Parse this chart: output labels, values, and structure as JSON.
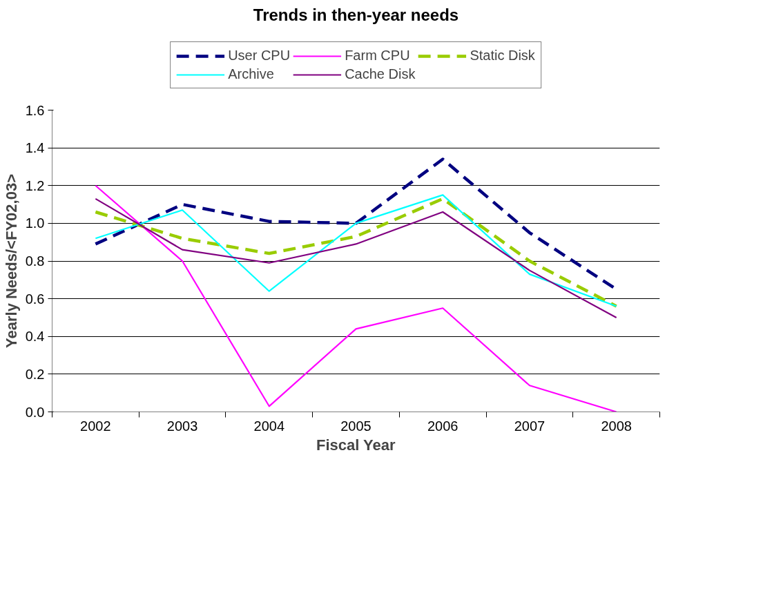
{
  "chart_data": {
    "type": "line",
    "title": "Trends in then-year needs",
    "xlabel": "Fiscal Year",
    "ylabel": "Yearly Needs/<FY02,03>",
    "categories": [
      "2002",
      "2003",
      "2004",
      "2005",
      "2006",
      "2007",
      "2008"
    ],
    "series": [
      {
        "name": "User CPU",
        "color": "#000080",
        "line_style": "dashed",
        "values": [
          0.89,
          1.1,
          1.01,
          1.0,
          1.34,
          0.95,
          0.65
        ]
      },
      {
        "name": "Farm CPU",
        "color": "#ff00ff",
        "line_style": "solid",
        "values": [
          1.2,
          0.8,
          0.03,
          0.44,
          0.55,
          0.14,
          0.0
        ]
      },
      {
        "name": "Static Disk",
        "color": "#99cc00",
        "line_style": "dashed",
        "values": [
          1.06,
          0.92,
          0.84,
          0.93,
          1.13,
          0.8,
          0.56
        ]
      },
      {
        "name": "Archive",
        "color": "#00ffff",
        "line_style": "solid",
        "values": [
          0.92,
          1.07,
          0.64,
          1.0,
          1.15,
          0.73,
          0.56
        ]
      },
      {
        "name": "Cache Disk",
        "color": "#800080",
        "line_style": "solid",
        "values": [
          1.13,
          0.86,
          0.79,
          0.89,
          1.06,
          0.75,
          0.5
        ]
      }
    ],
    "ylim": [
      0,
      1.6
    ],
    "yticks": [
      {
        "value": 0,
        "label": "0.0"
      },
      {
        "value": 0.2,
        "label": "0.2"
      },
      {
        "value": 0.4,
        "label": "0.4"
      },
      {
        "value": 0.6,
        "label": "0.6"
      },
      {
        "value": 0.8,
        "label": "0.8"
      },
      {
        "value": 1.0,
        "label": "1.0"
      },
      {
        "value": 1.2,
        "label": "1.2"
      },
      {
        "value": 1.4,
        "label": "1.4"
      },
      {
        "value": 1.6,
        "label": "1.6"
      }
    ],
    "grid": "y",
    "legend": "top",
    "marker": "none"
  }
}
